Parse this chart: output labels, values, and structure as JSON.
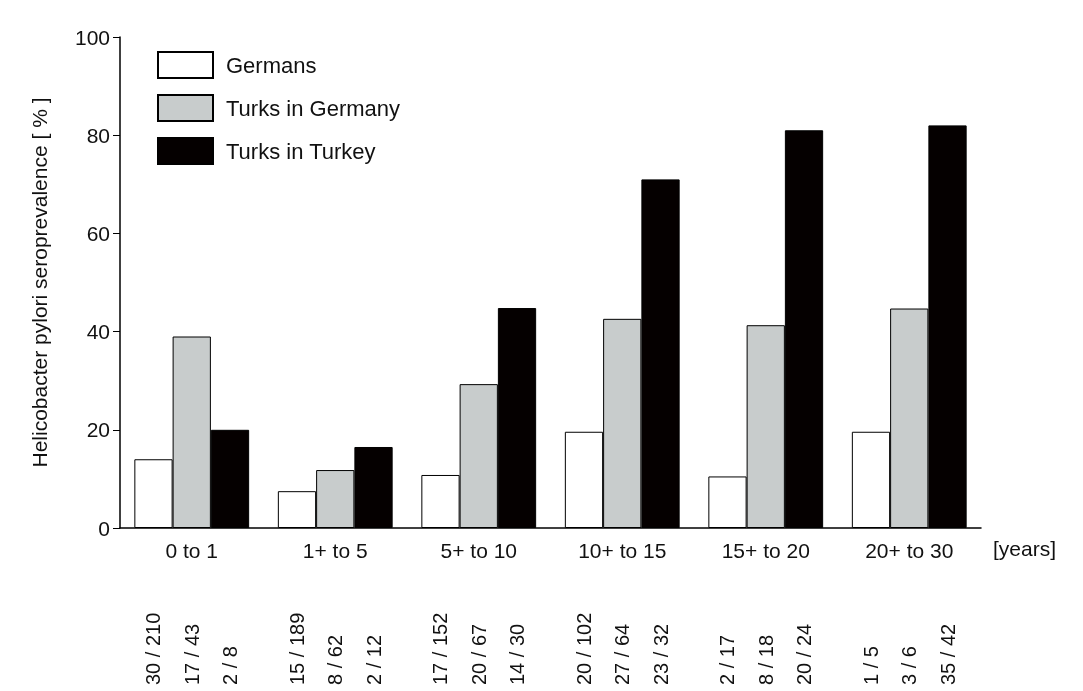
{
  "chart_data": {
    "type": "bar",
    "ylabel": "Helicobacter pylori seroprevalence [ % ]",
    "xlabel": "[years]",
    "categories": [
      "0 to 1",
      "1+ to 5",
      "5+ to 10",
      "10+ to 15",
      "15+ to 20",
      "20+ to 30"
    ],
    "series": [
      {
        "name": "Germans",
        "color": "#ffffff",
        "values": [
          14,
          7.5,
          10.8,
          19.6,
          10.5,
          19.6
        ]
      },
      {
        "name": "Turks in Germany",
        "color": "#c8cccc",
        "values": [
          39,
          11.8,
          29.3,
          42.6,
          41.3,
          44.7
        ]
      },
      {
        "name": "Turks in Turkey",
        "color": "#050000",
        "values": [
          20,
          16.5,
          44.8,
          71,
          81,
          82
        ]
      }
    ],
    "annotations": [
      "30 / 210",
      "17 / 43",
      "2 / 8",
      "15 / 189",
      "8 / 62",
      "2 / 12",
      "17 / 152",
      "20 / 67",
      "14 / 30",
      "20 / 102",
      "27 / 64",
      "23 / 32",
      "2 / 17",
      "8 / 18",
      "20 / 24",
      "1 / 5",
      "3 / 6",
      "35 / 42"
    ],
    "ylim": [
      0,
      100
    ],
    "yticks": [
      0,
      20,
      40,
      60,
      80,
      100
    ],
    "grid": false,
    "legend": "top left"
  }
}
